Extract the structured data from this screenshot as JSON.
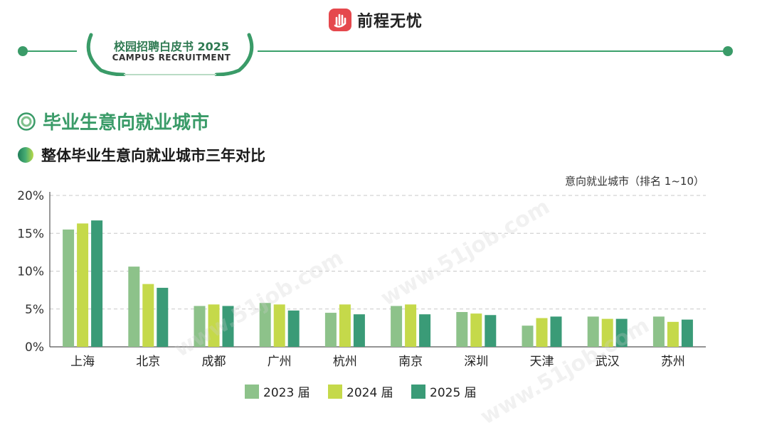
{
  "brand": {
    "name": "前程无忧"
  },
  "badge": {
    "title": "校园招聘白皮书 2025",
    "subtitle": "CAMPUS RECRUITMENT"
  },
  "section": {
    "title": "毕业生意向就业城市",
    "subtitle": "整体毕业生意向就业城市三年对比"
  },
  "watermark": "www.51job.com",
  "colors": {
    "accent": "#3a9b68",
    "s2023": "#8dc28a",
    "s2024": "#c5d94a",
    "s2025": "#3a9b77"
  },
  "chart_data": {
    "type": "bar",
    "note": "意向就业城市（排名 1~10）",
    "categories": [
      "上海",
      "北京",
      "成都",
      "广州",
      "杭州",
      "南京",
      "深圳",
      "天津",
      "武汉",
      "苏州"
    ],
    "series": [
      {
        "name": "2023 届",
        "values": [
          15.5,
          10.6,
          5.4,
          5.8,
          4.5,
          5.4,
          4.6,
          2.8,
          4.0,
          4.0
        ]
      },
      {
        "name": "2024 届",
        "values": [
          16.3,
          8.3,
          5.6,
          5.6,
          5.6,
          5.6,
          4.4,
          3.8,
          3.7,
          3.3
        ]
      },
      {
        "name": "2025 届",
        "values": [
          16.7,
          7.8,
          5.4,
          4.8,
          4.3,
          4.3,
          4.2,
          4.0,
          3.7,
          3.6
        ]
      }
    ],
    "yticks": [
      "0%",
      "5%",
      "10%",
      "15%",
      "20%"
    ],
    "ylim": [
      0,
      20
    ],
    "grid": true,
    "legend_position": "bottom"
  }
}
